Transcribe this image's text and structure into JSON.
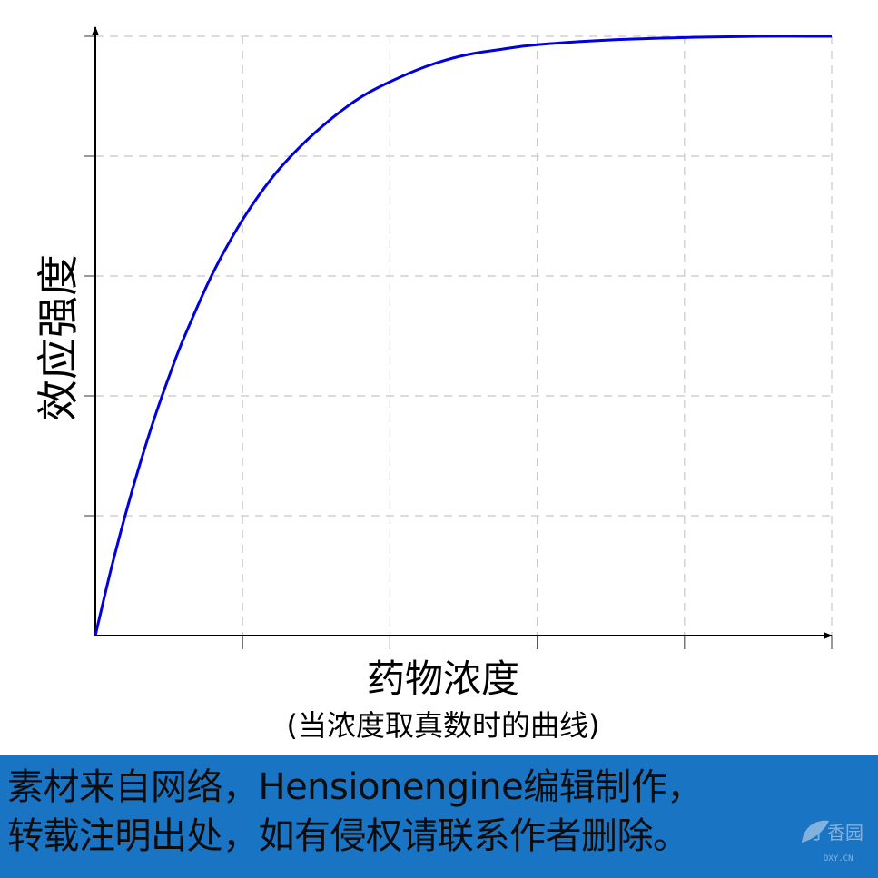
{
  "chart_data": {
    "type": "line",
    "title": "",
    "xlabel": "药物浓度",
    "note": "(当浓度取真数时的曲线)",
    "ylabel": "效应强度",
    "xlim": [
      0,
      5
    ],
    "ylim": [
      0,
      5
    ],
    "grid": true,
    "x_tick_labels": [],
    "y_tick_labels": [],
    "series": [
      {
        "color": "#0000e0",
        "x": [
          0,
          0.1,
          0.2,
          0.3,
          0.4,
          0.5,
          0.6,
          0.8,
          1.0,
          1.2,
          1.4,
          1.6,
          1.8,
          2.0,
          2.25,
          2.5,
          2.75,
          3.0,
          3.5,
          4.0,
          4.5,
          5.0
        ],
        "y": [
          0,
          0.52,
          0.99,
          1.42,
          1.81,
          2.16,
          2.48,
          3.03,
          3.47,
          3.82,
          4.09,
          4.31,
          4.49,
          4.62,
          4.75,
          4.84,
          4.89,
          4.93,
          4.97,
          4.99,
          5.0,
          5.0
        ]
      }
    ]
  },
  "banner": {
    "line1": "素材来自网络，Hensionengine编辑制作，",
    "line2": "转载注明出处，如有侵权请联系作者删除。",
    "background": "#1a74c4"
  },
  "watermark": {
    "text": "丁香园",
    "subtext": "DXY.CN"
  }
}
